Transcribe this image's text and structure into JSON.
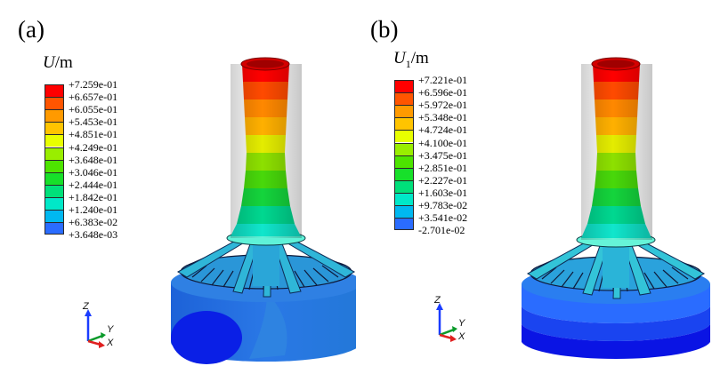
{
  "panels": [
    {
      "label": "(a)",
      "legend_symbol": "U",
      "legend_subscript": "",
      "legend_unit": "/m",
      "values": [
        "+7.259e-01",
        "+6.657e-01",
        "+6.055e-01",
        "+5.453e-01",
        "+4.851e-01",
        "+4.249e-01",
        "+3.648e-01",
        "+3.046e-01",
        "+2.444e-01",
        "+1.842e-01",
        "+1.240e-01",
        "+6.383e-02",
        "+3.648e-03"
      ],
      "colors": [
        "#ff0000",
        "#ff5500",
        "#ff9a00",
        "#ffc400",
        "#e8ff00",
        "#99ee00",
        "#4de400",
        "#17e02a",
        "#00e07a",
        "#00e8c8",
        "#00b8f0",
        "#2a6cff",
        "#0000f2"
      ],
      "axes": {
        "z": "Z",
        "y": "Y",
        "x": "X"
      }
    },
    {
      "label": "(b)",
      "legend_symbol": "U",
      "legend_subscript": "1",
      "legend_unit": "/m",
      "values": [
        "+7.221e-01",
        "+6.596e-01",
        "+5.972e-01",
        "+5.348e-01",
        "+4.724e-01",
        "+4.100e-01",
        "+3.475e-01",
        "+2.851e-01",
        "+2.227e-01",
        "+1.603e-01",
        "+9.783e-02",
        "+3.541e-02",
        "-2.701e-02"
      ],
      "colors": [
        "#ff0000",
        "#ff5500",
        "#ff9a00",
        "#ffc400",
        "#e8ff00",
        "#99ee00",
        "#4de400",
        "#17e02a",
        "#00e07a",
        "#00e8c8",
        "#00b8f0",
        "#2a6cff",
        "#0000f2"
      ],
      "axes": {
        "z": "Z",
        "y": "Y",
        "x": "X"
      }
    }
  ]
}
